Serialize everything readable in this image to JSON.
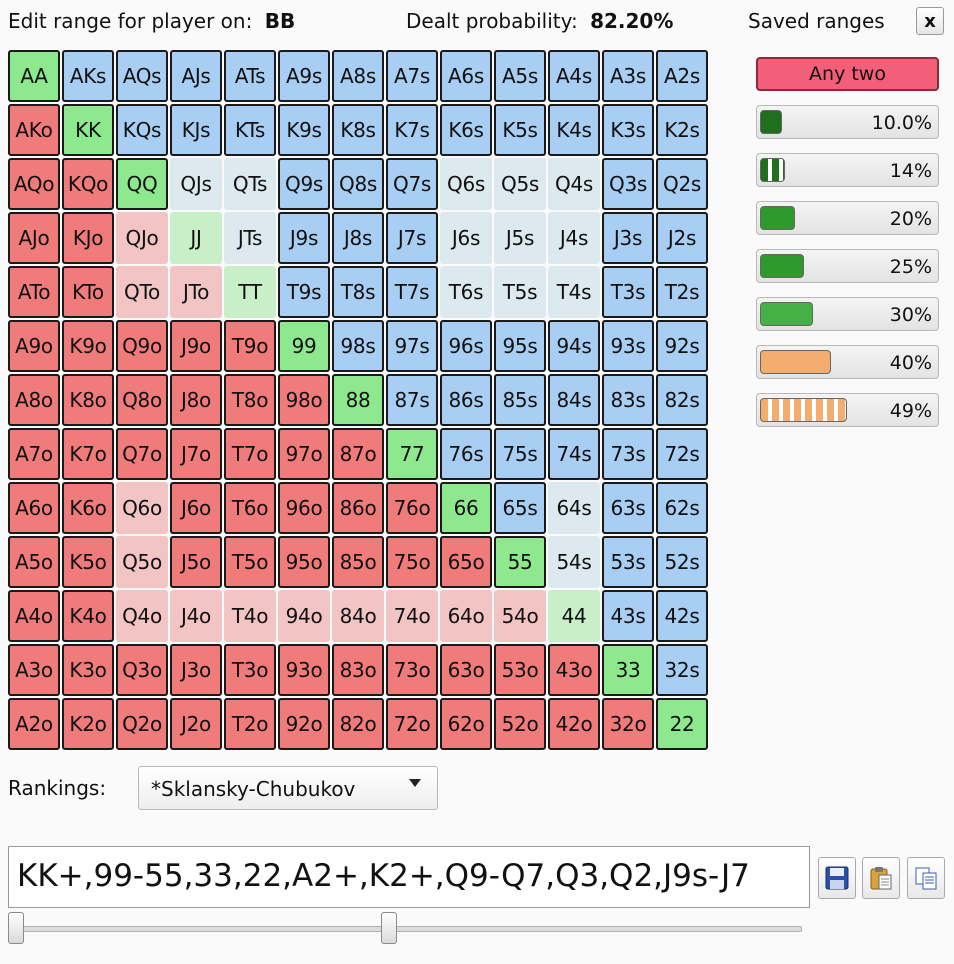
{
  "header": {
    "edit_label": "Edit range for player on:",
    "player": "BB",
    "prob_label": "Dealt probability:",
    "prob_value": "82.20%"
  },
  "saved": {
    "title": "Saved ranges",
    "close": "x",
    "any_two": "Any two",
    "items": [
      {
        "pct": "10.0%",
        "fill": 0.1,
        "color": "#1f6f1f",
        "striped": false
      },
      {
        "pct": "14%",
        "fill": 0.14,
        "color": "#1f6f1f",
        "striped": true
      },
      {
        "pct": "20%",
        "fill": 0.2,
        "color": "#2e9a2e",
        "striped": false
      },
      {
        "pct": "25%",
        "fill": 0.25,
        "color": "#2e9a2e",
        "striped": false
      },
      {
        "pct": "30%",
        "fill": 0.3,
        "color": "#45b045",
        "striped": false
      },
      {
        "pct": "40%",
        "fill": 0.4,
        "color": "#f3ad6e",
        "striped": false
      },
      {
        "pct": "49%",
        "fill": 0.49,
        "color": "#f3ad6e",
        "striped": true
      }
    ]
  },
  "grid": {
    "ranks": [
      "A",
      "K",
      "Q",
      "J",
      "T",
      "9",
      "8",
      "7",
      "6",
      "5",
      "4",
      "3",
      "2"
    ],
    "dimmed": [
      "QJs",
      "QTs",
      "Q6s",
      "Q5s",
      "Q4s",
      "JTs",
      "J6s",
      "J5s",
      "J4s",
      "T6s",
      "T5s",
      "T4s",
      "64s",
      "54s",
      "QJo",
      "JJ",
      "QTo",
      "JTo",
      "TT",
      "Q6o",
      "Q5o",
      "Q4o",
      "J4o",
      "T4o",
      "94o",
      "84o",
      "74o",
      "64o",
      "54o",
      "44"
    ]
  },
  "rankings": {
    "label": "Rankings:",
    "value": "*Sklansky-Chubukov"
  },
  "range_text": "KK+,99-55,33,22,A2+,K2+,Q9-Q7,Q3,Q2,J9s-J7",
  "colors": {
    "pair": "#8ee88e",
    "suited": "#a9cef3",
    "offsuit": "#f07b7b",
    "any_two": "#f25f78"
  },
  "icons": {
    "save": "save-icon",
    "paste": "paste-icon",
    "copy": "copy-icon"
  },
  "slider": {
    "low": 0.0,
    "high": 0.475
  }
}
